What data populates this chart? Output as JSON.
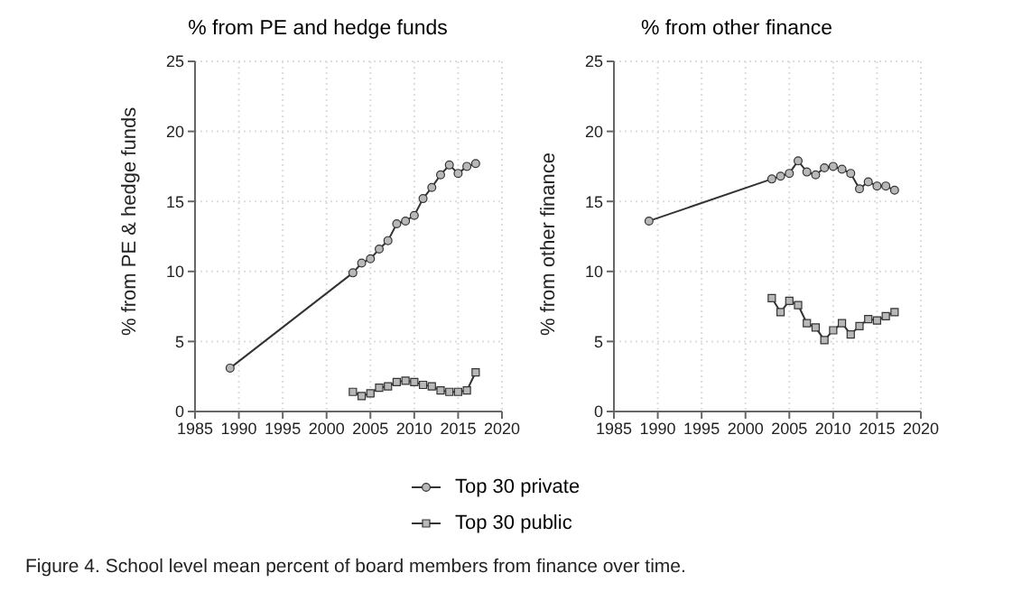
{
  "chart_data": [
    {
      "type": "line",
      "title": "% from PE and hedge funds",
      "ylabel": "% from PE & hedge funds",
      "xlim": [
        1985,
        2020
      ],
      "xticks": [
        1985,
        1990,
        1995,
        2000,
        2005,
        2010,
        2015,
        2020
      ],
      "ylim": [
        0,
        25
      ],
      "yticks": [
        0,
        5,
        10,
        15,
        20,
        25
      ],
      "grid": true,
      "legend": "bottom",
      "annotations": [
        "Figure 4. School level mean percent of board members from finance over time."
      ],
      "series": [
        {
          "name": "Top 30 private",
          "color": "#333333",
          "marker": "circle",
          "x": [
            1989,
            2003,
            2004,
            2005,
            2006,
            2007,
            2008,
            2009,
            2010,
            2011,
            2012,
            2013,
            2014,
            2015,
            2016,
            2017
          ],
          "values": [
            3.1,
            9.9,
            10.6,
            10.9,
            11.6,
            12.2,
            13.4,
            13.6,
            14.0,
            15.2,
            16.0,
            16.9,
            17.6,
            17.0,
            17.5,
            17.7
          ]
        },
        {
          "name": "Top 30 public",
          "color": "#333333",
          "marker": "square",
          "x": [
            2003,
            2004,
            2005,
            2006,
            2007,
            2008,
            2009,
            2010,
            2011,
            2012,
            2013,
            2014,
            2015,
            2016,
            2017
          ],
          "values": [
            1.4,
            1.1,
            1.3,
            1.7,
            1.8,
            2.1,
            2.2,
            2.1,
            1.9,
            1.8,
            1.5,
            1.4,
            1.4,
            1.5,
            2.8
          ]
        }
      ]
    },
    {
      "type": "line",
      "title": "% from other finance",
      "ylabel": "% from other finance",
      "xlim": [
        1985,
        2020
      ],
      "xticks": [
        1985,
        1990,
        1995,
        2000,
        2005,
        2010,
        2015,
        2020
      ],
      "ylim": [
        0,
        25
      ],
      "yticks": [
        0,
        5,
        10,
        15,
        20,
        25
      ],
      "grid": true,
      "series": [
        {
          "color": "#333333",
          "marker": "circle",
          "x": [
            1989,
            2003,
            2004,
            2005,
            2006,
            2007,
            2008,
            2009,
            2010,
            2011,
            2012,
            2013,
            2014,
            2015,
            2016,
            2017
          ],
          "values": [
            13.6,
            16.6,
            16.8,
            17.0,
            17.9,
            17.1,
            16.9,
            17.4,
            17.5,
            17.3,
            17.0,
            15.9,
            16.4,
            16.1,
            16.1,
            15.8
          ]
        },
        {
          "color": "#333333",
          "marker": "square",
          "x": [
            2003,
            2004,
            2005,
            2006,
            2007,
            2008,
            2009,
            2010,
            2011,
            2012,
            2013,
            2014,
            2015,
            2016,
            2017
          ],
          "values": [
            8.1,
            7.1,
            7.9,
            7.6,
            6.3,
            6.0,
            5.1,
            5.8,
            6.3,
            5.5,
            6.1,
            6.6,
            6.5,
            6.8,
            7.1
          ]
        }
      ]
    }
  ]
}
